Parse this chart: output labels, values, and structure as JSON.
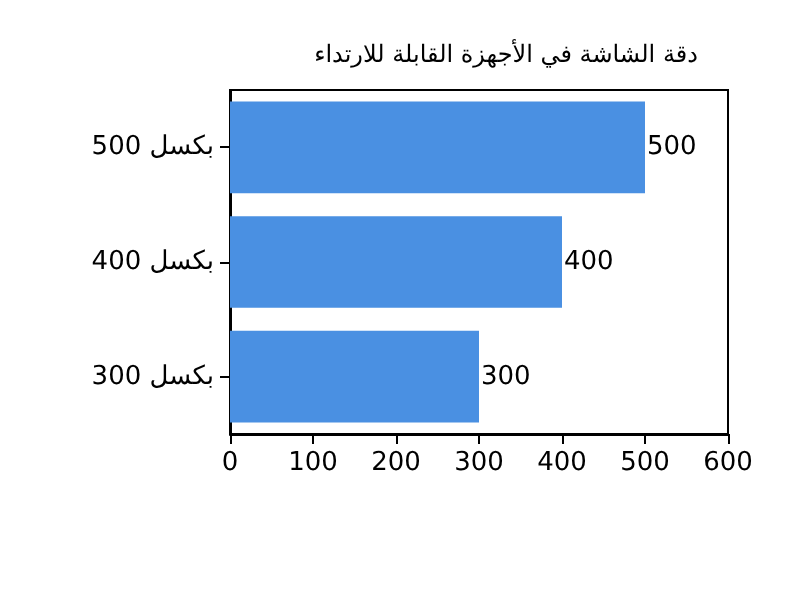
{
  "chart_data": {
    "type": "bar",
    "orientation": "horizontal",
    "title": "دقة الشاشة في الأجهزة القابلة للارتداء",
    "categories": [
      "500 بكسل",
      "400 بكسل",
      "300 بكسل"
    ],
    "values": [
      500,
      400,
      300
    ],
    "color": "#4a90e2",
    "xlim": [
      0,
      600
    ],
    "xticks": [
      0,
      100,
      200,
      300,
      400,
      500,
      600
    ],
    "data_labels": true,
    "grid": false
  }
}
